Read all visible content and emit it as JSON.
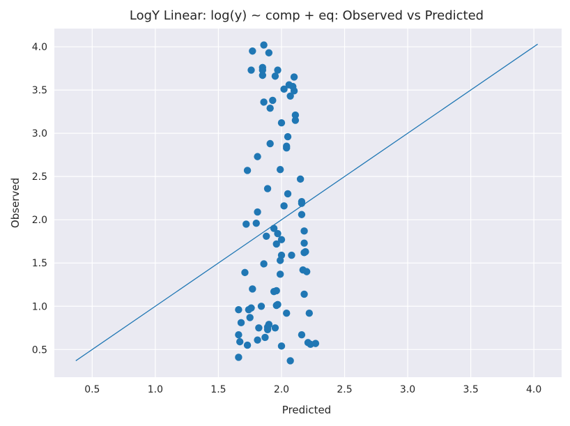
{
  "chart_data": {
    "type": "scatter",
    "title": "LogY Linear: log(y) ~ comp + eq: Observed vs Predicted",
    "xlabel": "Predicted",
    "ylabel": "Observed",
    "xlim": [
      0.2,
      4.22
    ],
    "ylim": [
      0.18,
      4.21
    ],
    "xticks": [
      0.5,
      1.0,
      1.5,
      2.0,
      2.5,
      3.0,
      3.5,
      4.0
    ],
    "yticks": [
      0.5,
      1.0,
      1.5,
      2.0,
      2.5,
      3.0,
      3.5,
      4.0
    ],
    "xtick_labels": [
      "0.5",
      "1.0",
      "1.5",
      "2.0",
      "2.5",
      "3.0",
      "3.5",
      "4.0"
    ],
    "ytick_labels": [
      "0.5",
      "1.0",
      "1.5",
      "2.0",
      "2.5",
      "3.0",
      "3.5",
      "4.0"
    ],
    "grid": true,
    "color": "#2077b4",
    "reference_line": {
      "x": [
        0.37,
        4.03
      ],
      "y": [
        0.37,
        4.03
      ]
    },
    "points": {
      "x": [
        1.86,
        1.77,
        1.9,
        1.85,
        1.76,
        1.85,
        1.85,
        1.97,
        1.95,
        2.1,
        2.06,
        2.09,
        2.02,
        2.1,
        2.07,
        1.93,
        1.86,
        1.91,
        2.11,
        2.11,
        2.0,
        2.05,
        1.91,
        2.04,
        2.04,
        1.81,
        1.99,
        1.73,
        2.15,
        1.89,
        2.05,
        2.16,
        2.16,
        2.02,
        1.81,
        2.16,
        1.72,
        1.8,
        1.94,
        2.18,
        1.97,
        1.88,
        2.0,
        1.96,
        2.18,
        2.0,
        2.19,
        2.08,
        2.18,
        1.86,
        1.99,
        2.17,
        1.71,
        2.2,
        1.99,
        1.77,
        1.96,
        1.94,
        2.18,
        1.97,
        1.96,
        1.84,
        1.76,
        1.74,
        1.66,
        2.04,
        2.22,
        1.75,
        1.68,
        1.9,
        1.89,
        1.95,
        1.82,
        1.89,
        1.66,
        2.16,
        1.87,
        1.67,
        1.81,
        1.73,
        2.0,
        2.21,
        2.23,
        2.27,
        1.66,
        2.07
      ],
      "y": [
        4.02,
        3.95,
        3.93,
        3.76,
        3.73,
        3.73,
        3.67,
        3.73,
        3.66,
        3.65,
        3.56,
        3.54,
        3.51,
        3.49,
        3.43,
        3.38,
        3.36,
        3.29,
        3.21,
        3.15,
        3.12,
        2.96,
        2.88,
        2.85,
        2.83,
        2.73,
        2.58,
        2.57,
        2.47,
        2.36,
        2.3,
        2.21,
        2.19,
        2.16,
        2.09,
        2.06,
        1.95,
        1.96,
        1.9,
        1.87,
        1.84,
        1.81,
        1.77,
        1.72,
        1.73,
        1.59,
        1.63,
        1.59,
        1.62,
        1.49,
        1.53,
        1.42,
        1.39,
        1.4,
        1.37,
        1.2,
        1.18,
        1.17,
        1.14,
        1.02,
        1.01,
        1.0,
        0.98,
        0.96,
        0.96,
        0.92,
        0.92,
        0.87,
        0.81,
        0.79,
        0.76,
        0.75,
        0.75,
        0.73,
        0.67,
        0.67,
        0.64,
        0.59,
        0.61,
        0.55,
        0.54,
        0.58,
        0.56,
        0.57,
        0.41,
        0.37
      ]
    }
  }
}
